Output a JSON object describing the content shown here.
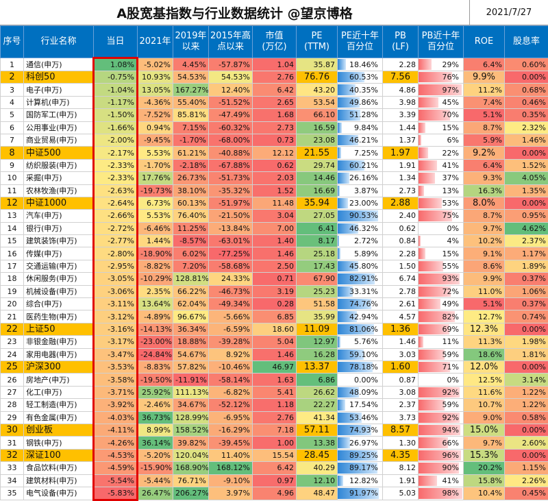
{
  "title": "A股宽基指数与行业数据统计  @望京博格",
  "date": "2021/7/27",
  "headers": [
    "序号",
    "行业名称",
    "当日",
    "2021年",
    "2019年\n以来",
    "2015年高\n点以来",
    "市值\n(万亿)",
    "PE\n(TTM)",
    "PE近十年\n百分位",
    "PB\n(LF)",
    "PB近十年\n百分位",
    "ROE",
    "股息率"
  ],
  "rows": [
    {
      "i": "1",
      "name": "通信(申万)",
      "d": "1.08%",
      "y21": "-5.02%",
      "y19": "4.45%",
      "y15": "-57.87%",
      "cap": "1.04",
      "pe": "35.87",
      "pep": "18.46%",
      "pb": "2.28",
      "pbp": "29%",
      "roe": "6.4%",
      "div": "0.60%",
      "idx": false
    },
    {
      "i": "2",
      "name": "科创50",
      "d": "-0.75%",
      "y21": "10.93%",
      "y19": "54.53%",
      "y15": "54.53%",
      "cap": "2.76",
      "pe": "76.76",
      "pep": "60.53%",
      "pb": "7.56",
      "pbp": "76%",
      "roe": "9.9%",
      "div": "0.00%",
      "idx": true
    },
    {
      "i": "3",
      "name": "电子(申万)",
      "d": "-1.04%",
      "y21": "13.05%",
      "y19": "167.27%",
      "y15": "12.40%",
      "cap": "6.42",
      "pe": "43.20",
      "pep": "40.35%",
      "pb": "4.86",
      "pbp": "97%",
      "roe": "11.2%",
      "div": "0.68%",
      "idx": false
    },
    {
      "i": "4",
      "name": "计算机(申万)",
      "d": "-1.17%",
      "y21": "-4.36%",
      "y19": "55.40%",
      "y15": "-51.52%",
      "cap": "2.65",
      "pe": "53.54",
      "pep": "49.86%",
      "pb": "3.98",
      "pbp": "45%",
      "roe": "7.4%",
      "div": "0.46%",
      "idx": false
    },
    {
      "i": "5",
      "name": "国防军工(申万)",
      "d": "-1.50%",
      "y21": "-7.52%",
      "y19": "85.81%",
      "y15": "-47.49%",
      "cap": "1.68",
      "pe": "66.10",
      "pep": "51.28%",
      "pb": "3.39",
      "pbp": "70%",
      "roe": "5.1%",
      "div": "0.35%",
      "idx": false
    },
    {
      "i": "6",
      "name": "公用事业(申万)",
      "d": "-1.66%",
      "y21": "0.94%",
      "y19": "7.15%",
      "y15": "-60.32%",
      "cap": "2.73",
      "pe": "16.59",
      "pep": "9.84%",
      "pb": "1.44",
      "pbp": "15%",
      "roe": "8.7%",
      "div": "2.32%",
      "idx": false
    },
    {
      "i": "7",
      "name": "商业贸易(申万)",
      "d": "-2.00%",
      "y21": "-9.45%",
      "y19": "-1.70%",
      "y15": "-68.00%",
      "cap": "0.73",
      "pe": "23.08",
      "pep": "46.21%",
      "pb": "1.37",
      "pbp": "6%",
      "roe": "5.9%",
      "div": "1.46%",
      "idx": false
    },
    {
      "i": "8",
      "name": "中证500",
      "d": "-2.17%",
      "y21": "5.53%",
      "y19": "61.21%",
      "y15": "-40.88%",
      "cap": "12.12",
      "pe": "21.55",
      "pep": "7.25%",
      "pb": "1.97",
      "pbp": "22%",
      "roe": "9.2%",
      "div": "0.00%",
      "idx": true
    },
    {
      "i": "9",
      "name": "纺织服装(申万)",
      "d": "-2.33%",
      "y21": "-1.70%",
      "y19": "-2.18%",
      "y15": "-67.88%",
      "cap": "0.62",
      "pe": "29.74",
      "pep": "60.21%",
      "pb": "1.91",
      "pbp": "41%",
      "roe": "6.4%",
      "div": "1.52%",
      "idx": false
    },
    {
      "i": "10",
      "name": "采掘(申万)",
      "d": "-2.33%",
      "y21": "17.76%",
      "y19": "26.73%",
      "y15": "-51.73%",
      "cap": "2.03",
      "pe": "14.46",
      "pep": "26.16%",
      "pb": "1.34",
      "pbp": "37%",
      "roe": "9.3%",
      "div": "4.05%",
      "idx": false
    },
    {
      "i": "11",
      "name": "农林牧渔(申万)",
      "d": "-2.63%",
      "y21": "-19.73%",
      "y19": "38.10%",
      "y15": "-35.32%",
      "cap": "1.52",
      "pe": "16.69",
      "pep": "3.87%",
      "pb": "2.73",
      "pbp": "13%",
      "roe": "16.3%",
      "div": "1.35%",
      "idx": false
    },
    {
      "i": "12",
      "name": "中证1000",
      "d": "-2.64%",
      "y21": "6.73%",
      "y19": "60.13%",
      "y15": "-51.97%",
      "cap": "11.48",
      "pe": "35.94",
      "pep": "23.00%",
      "pb": "2.88",
      "pbp": "53%",
      "roe": "8.0%",
      "div": "0.00%",
      "idx": true
    },
    {
      "i": "13",
      "name": "汽车(申万)",
      "d": "-2.66%",
      "y21": "5.53%",
      "y19": "76.40%",
      "y15": "-21.50%",
      "cap": "3.04",
      "pe": "27.05",
      "pep": "90.53%",
      "pb": "2.40",
      "pbp": "75%",
      "roe": "8.7%",
      "div": "0.95%",
      "idx": false
    },
    {
      "i": "14",
      "name": "银行(申万)",
      "d": "-2.72%",
      "y21": "-6.46%",
      "y19": "11.25%",
      "y15": "-13.84%",
      "cap": "7.00",
      "pe": "6.41",
      "pep": "46.32%",
      "pb": "0.62",
      "pbp": "0%",
      "roe": "9.7%",
      "div": "4.62%",
      "idx": false
    },
    {
      "i": "15",
      "name": "建筑装饰(申万)",
      "d": "-2.77%",
      "y21": "1.44%",
      "y19": "-8.57%",
      "y15": "-63.01%",
      "cap": "1.40",
      "pe": "8.17",
      "pep": "2.72%",
      "pb": "0.84",
      "pbp": "4%",
      "roe": "10.2%",
      "div": "2.37%",
      "idx": false
    },
    {
      "i": "16",
      "name": "传媒(申万)",
      "d": "-2.80%",
      "y21": "-18.90%",
      "y19": "6.02%",
      "y15": "-77.25%",
      "cap": "1.46",
      "pe": "25.18",
      "pep": "5.89%",
      "pb": "2.28",
      "pbp": "15%",
      "roe": "9.1%",
      "div": "1.17%",
      "idx": false
    },
    {
      "i": "17",
      "name": "交通运输(申万)",
      "d": "-2.95%",
      "y21": "-8.82%",
      "y19": "7.20%",
      "y15": "-58.68%",
      "cap": "2.50",
      "pe": "17.43",
      "pep": "45.80%",
      "pb": "1.50",
      "pbp": "55%",
      "roe": "8.6%",
      "div": "1.89%",
      "idx": false
    },
    {
      "i": "18",
      "name": "休闲服务(申万)",
      "d": "-3.05%",
      "y21": "-10.29%",
      "y19": "128.81%",
      "y15": "24.33%",
      "cap": "0.71",
      "pe": "67.90",
      "pep": "82.91%",
      "pb": "6.74",
      "pbp": "93%",
      "roe": "9.9%",
      "div": "0.37%",
      "idx": false
    },
    {
      "i": "19",
      "name": "机械设备(申万)",
      "d": "-3.06%",
      "y21": "2.35%",
      "y19": "66.22%",
      "y15": "-46.73%",
      "cap": "3.19",
      "pe": "25.23",
      "pep": "33.31%",
      "pb": "2.78",
      "pbp": "72%",
      "roe": "11.0%",
      "div": "1.06%",
      "idx": false
    },
    {
      "i": "20",
      "name": "综合(申万)",
      "d": "-3.11%",
      "y21": "13.64%",
      "y19": "62.04%",
      "y15": "-49.34%",
      "cap": "0.28",
      "pe": "51.58",
      "pep": "74.76%",
      "pb": "2.61",
      "pbp": "49%",
      "roe": "5.1%",
      "div": "0.37%",
      "idx": false
    },
    {
      "i": "21",
      "name": "医药生物(申万)",
      "d": "-3.12%",
      "y21": "-4.89%",
      "y19": "96.67%",
      "y15": "-5.66%",
      "cap": "6.85",
      "pe": "35.99",
      "pep": "42.94%",
      "pb": "4.57",
      "pbp": "82%",
      "roe": "12.7%",
      "div": "0.74%",
      "idx": false
    },
    {
      "i": "22",
      "name": "上证50",
      "d": "-3.16%",
      "y21": "-14.13%",
      "y19": "36.34%",
      "y15": "-6.59%",
      "cap": "18.60",
      "pe": "11.09",
      "pep": "81.06%",
      "pb": "1.36",
      "pbp": "69%",
      "roe": "12.3%",
      "div": "0.00%",
      "idx": true
    },
    {
      "i": "23",
      "name": "非银金融(申万)",
      "d": "-3.17%",
      "y21": "-23.00%",
      "y19": "18.88%",
      "y15": "-39.28%",
      "cap": "5.04",
      "pe": "12.97",
      "pep": "5.76%",
      "pb": "1.46",
      "pbp": "11%",
      "roe": "11.3%",
      "div": "1.98%",
      "idx": false
    },
    {
      "i": "24",
      "name": "家用电器(申万)",
      "d": "-3.47%",
      "y21": "-24.84%",
      "y19": "54.67%",
      "y15": "8.92%",
      "cap": "1.46",
      "pe": "16.28",
      "pep": "59.10%",
      "pb": "3.03",
      "pbp": "59%",
      "roe": "18.6%",
      "div": "1.81%",
      "idx": false
    },
    {
      "i": "25",
      "name": "沪深300",
      "d": "-3.53%",
      "y21": "-8.83%",
      "y19": "57.82%",
      "y15": "-10.46%",
      "cap": "46.97",
      "pe": "13.37",
      "pep": "78.18%",
      "pb": "1.60",
      "pbp": "71%",
      "roe": "12.0%",
      "div": "0.00%",
      "idx": true
    },
    {
      "i": "26",
      "name": "房地产(申万)",
      "d": "-3.58%",
      "y21": "-19.50%",
      "y19": "-11.91%",
      "y15": "-58.14%",
      "cap": "1.63",
      "pe": "6.86",
      "pep": "0.00%",
      "pb": "0.87",
      "pbp": "0%",
      "roe": "12.5%",
      "div": "3.14%",
      "idx": false
    },
    {
      "i": "27",
      "name": "化工(申万)",
      "d": "-3.71%",
      "y21": "25.92%",
      "y19": "111.13%",
      "y15": "-6.82%",
      "cap": "5.41",
      "pe": "26.62",
      "pep": "48.09%",
      "pb": "3.08",
      "pbp": "92%",
      "roe": "11.6%",
      "div": "1.22%",
      "idx": false
    },
    {
      "i": "28",
      "name": "轻工制造(申万)",
      "d": "-3.92%",
      "y21": "-2.46%",
      "y19": "34.67%",
      "y15": "-52.12%",
      "cap": "1.18",
      "pe": "22.27",
      "pep": "17.54%",
      "pb": "2.37",
      "pbp": "59%",
      "roe": "10.7%",
      "div": "1.22%",
      "idx": false
    },
    {
      "i": "29",
      "name": "有色金属(申万)",
      "d": "-4.03%",
      "y21": "36.73%",
      "y19": "128.99%",
      "y15": "-6.95%",
      "cap": "2.76",
      "pe": "41.34",
      "pep": "53.46%",
      "pb": "3.73",
      "pbp": "92%",
      "roe": "9.0%",
      "div": "0.58%",
      "idx": false
    },
    {
      "i": "30",
      "name": "创业板",
      "d": "-4.11%",
      "y21": "8.99%",
      "y19": "158.52%",
      "y15": "-16.29%",
      "cap": "7.18",
      "pe": "57.11",
      "pep": "74.93%",
      "pb": "8.57",
      "pbp": "94%",
      "roe": "15.0%",
      "div": "0.00%",
      "idx": true
    },
    {
      "i": "31",
      "name": "钢铁(申万)",
      "d": "-4.26%",
      "y21": "36.14%",
      "y19": "39.82%",
      "y15": "-39.45%",
      "cap": "1.00",
      "pe": "13.38",
      "pep": "26.97%",
      "pb": "1.30",
      "pbp": "66%",
      "roe": "9.7%",
      "div": "2.60%",
      "idx": false
    },
    {
      "i": "32",
      "name": "深证100",
      "d": "-4.53%",
      "y21": "-5.20%",
      "y19": "120.04%",
      "y15": "11.40%",
      "cap": "15.54",
      "pe": "28.45",
      "pep": "89.25%",
      "pb": "4.35",
      "pbp": "96%",
      "roe": "15.3%",
      "div": "0.00%",
      "idx": true
    },
    {
      "i": "33",
      "name": "食品饮料(申万)",
      "d": "-4.59%",
      "y21": "-15.90%",
      "y19": "168.90%",
      "y15": "168.12%",
      "cap": "6.42",
      "pe": "40.29",
      "pep": "89.17%",
      "pb": "8.12",
      "pbp": "90%",
      "roe": "20.2%",
      "div": "1.15%",
      "idx": false
    },
    {
      "i": "34",
      "name": "建筑材料(申万)",
      "d": "-5.54%",
      "y21": "-5.44%",
      "y19": "76.71%",
      "y15": "-9.10%",
      "cap": "0.97",
      "pe": "12.10",
      "pep": "12.82%",
      "pb": "1.91",
      "pbp": "41%",
      "roe": "15.8%",
      "div": "2.26%",
      "idx": false
    },
    {
      "i": "35",
      "name": "电气设备(申万)",
      "d": "-5.83%",
      "y21": "26.47%",
      "y19": "206.27%",
      "y15": "3.97%",
      "cap": "4.96",
      "pe": "48.47",
      "pep": "91.97%",
      "pb": "5.03",
      "pbp": "98%",
      "roe": "10.4%",
      "div": "0.45%",
      "idx": false
    }
  ]
}
